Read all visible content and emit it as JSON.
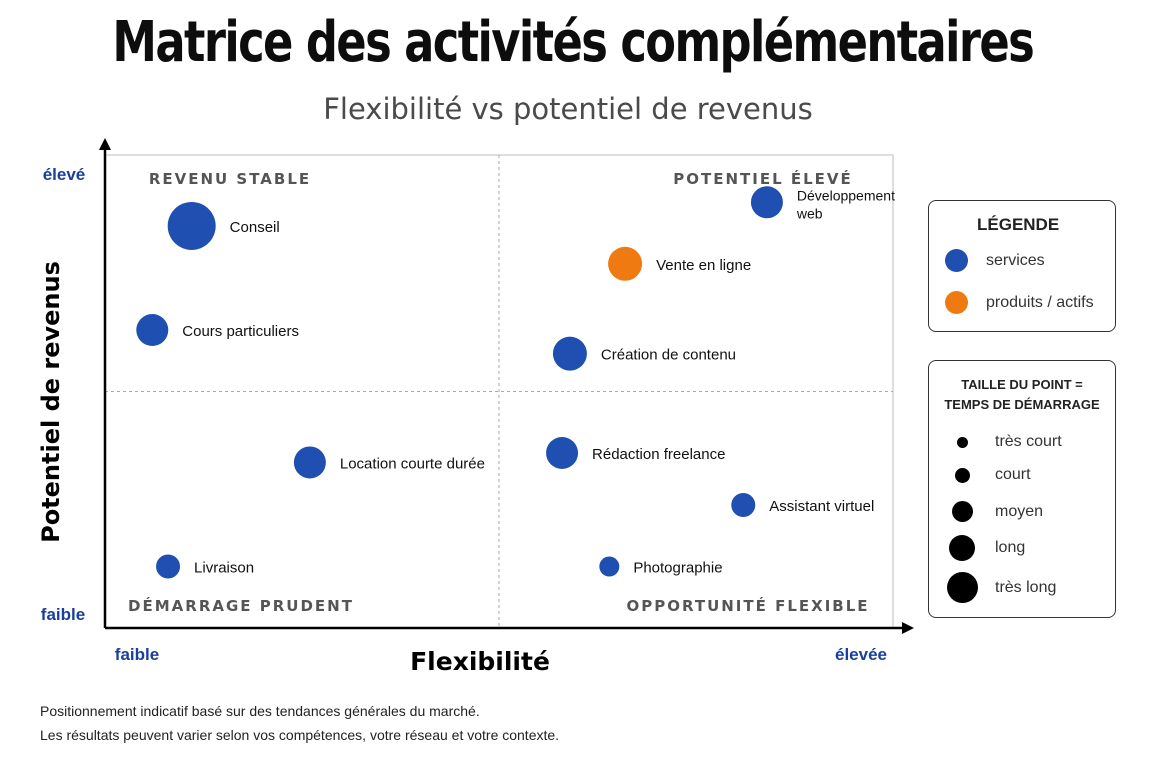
{
  "title": "Matrice des activités complémentaires",
  "subtitle": "Flexibilité vs potentiel de revenus",
  "chart_data": {
    "type": "scatter",
    "xlabel": "Flexibilité",
    "ylabel": "Potentiel de revenus",
    "x_tick_labels": [
      "faible",
      "élevée"
    ],
    "y_tick_labels": [
      "faible",
      "élevé"
    ],
    "xlim": [
      0,
      10
    ],
    "ylim": [
      0,
      10
    ],
    "quadrants": {
      "top_left": "REVENU STABLE",
      "top_right": "POTENTIEL ÉLEVÉ",
      "bottom_left": "DÉMARRAGE PRUDENT",
      "bottom_right": "OPPORTUNITÉ FLEXIBLE"
    },
    "categories": {
      "services": {
        "label": "services",
        "color": "#1f4fb0"
      },
      "produits": {
        "label": "produits / actifs",
        "color": "#f07a12"
      }
    },
    "points": [
      {
        "name": "Conseil",
        "x": 1.1,
        "y": 8.5,
        "size": "très long",
        "category": "services"
      },
      {
        "name": "Cours particuliers",
        "x": 0.6,
        "y": 6.3,
        "size": "moyen",
        "category": "services"
      },
      {
        "name": "Développement web",
        "x": 8.4,
        "y": 9.0,
        "size": "moyen",
        "category": "services",
        "label_lines": [
          "Développement",
          "web"
        ]
      },
      {
        "name": "Vente en ligne",
        "x": 6.6,
        "y": 7.7,
        "size": "long",
        "category": "produits"
      },
      {
        "name": "Création de contenu",
        "x": 5.9,
        "y": 5.8,
        "size": "long",
        "category": "services"
      },
      {
        "name": "Location courte durée",
        "x": 2.6,
        "y": 3.5,
        "size": "moyen",
        "category": "services"
      },
      {
        "name": "Livraison",
        "x": 0.8,
        "y": 1.3,
        "size": "court",
        "category": "services"
      },
      {
        "name": "Rédaction freelance",
        "x": 5.8,
        "y": 3.7,
        "size": "moyen",
        "category": "services"
      },
      {
        "name": "Assistant virtuel",
        "x": 8.1,
        "y": 2.6,
        "size": "court",
        "category": "services"
      },
      {
        "name": "Photographie",
        "x": 6.4,
        "y": 1.3,
        "size": "très court",
        "category": "services"
      }
    ],
    "size_scale": [
      "très court",
      "court",
      "moyen",
      "long",
      "très long"
    ]
  },
  "legend": {
    "title": "LÉGENDE",
    "items": [
      {
        "label": "services",
        "color": "#1f4fb0"
      },
      {
        "label": "produits / actifs",
        "color": "#f07a12"
      }
    ]
  },
  "size_legend": {
    "title_line1": "TAILLE DU POINT =",
    "title_line2": "TEMPS DE DÉMARRAGE",
    "items": [
      "très court",
      "court",
      "moyen",
      "long",
      "très long"
    ]
  },
  "footnote": {
    "line1": "Positionnement indicatif basé sur des tendances générales du marché.",
    "line2": "Les résultats peuvent varier selon vos compétences, votre réseau et votre contexte."
  }
}
